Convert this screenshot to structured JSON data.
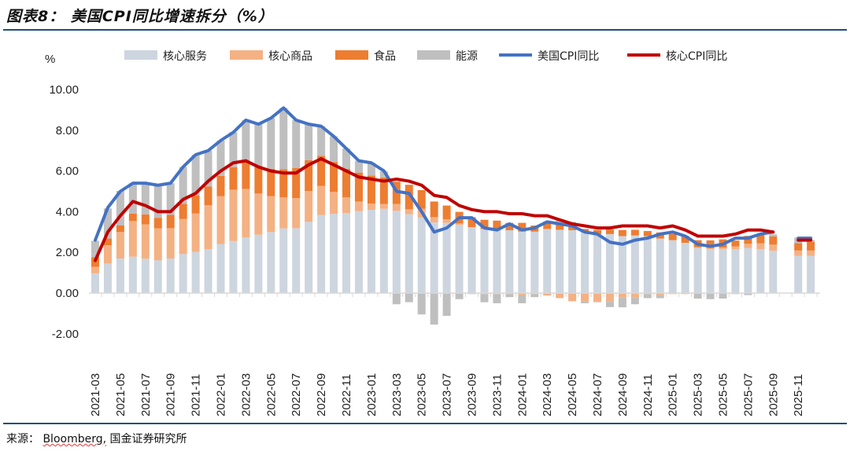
{
  "title": "图表8：  美国CPI同比增速拆分（%）",
  "source": {
    "prefix": "来源：",
    "brand": "Bloomberg,",
    "suffix": "国金证券研究所"
  },
  "chart_data": {
    "type": "bar",
    "stacked": true,
    "title": "",
    "ylabel": "%",
    "ylim": [
      -2,
      10
    ],
    "yticks": [
      "-2.00",
      "0.00",
      "2.00",
      "4.00",
      "6.00",
      "8.00",
      "10.00"
    ],
    "ytick_values": [
      -2,
      0,
      2,
      4,
      6,
      8,
      10
    ],
    "grid": false,
    "legend_position": "top",
    "categories": [
      "2021-03",
      "2021-04",
      "2021-05",
      "2021-06",
      "2021-07",
      "2021-08",
      "2021-09",
      "2021-10",
      "2021-11",
      "2021-12",
      "2022-01",
      "2022-02",
      "2022-03",
      "2022-04",
      "2022-05",
      "2022-06",
      "2022-07",
      "2022-08",
      "2022-09",
      "2022-10",
      "2022-11",
      "2022-12",
      "2023-01",
      "2023-02",
      "2023-03",
      "2023-04",
      "2023-05",
      "2023-06",
      "2023-07",
      "2023-08",
      "2023-09",
      "2023-10",
      "2023-11",
      "2023-12",
      "2024-01",
      "2024-02",
      "2024-03",
      "2024-04",
      "2024-05",
      "2024-06",
      "2024-07",
      "2024-08",
      "2024-09",
      "2024-10",
      "2024-11",
      "2024-12",
      "2025-01",
      "2025-02",
      "2025-03",
      "2025-04",
      "2025-05",
      "2025-06",
      "2025-07",
      "2025-08",
      "2025-09",
      "2025-10",
      "2025-11",
      "2025-12"
    ],
    "xtick_labels": [
      "2021-03",
      "2021-05",
      "2021-07",
      "2021-09",
      "2021-11",
      "2022-01",
      "2022-03",
      "2022-05",
      "2022-07",
      "2022-09",
      "2022-11",
      "2023-01",
      "2023-03",
      "2023-05",
      "2023-07",
      "2023-09",
      "2023-11",
      "2024-01",
      "2024-03",
      "2024-05",
      "2024-07",
      "2024-09",
      "2024-11",
      "2025-01",
      "2025-03",
      "2025-05",
      "2025-07",
      "2025-09",
      "2025-11"
    ],
    "bar_series": [
      {
        "name": "核心服务",
        "color": "#CDD5DF",
        "values": [
          0.97,
          1.45,
          1.7,
          1.79,
          1.69,
          1.61,
          1.7,
          1.92,
          2.02,
          2.16,
          2.41,
          2.56,
          2.74,
          2.87,
          3.0,
          3.18,
          3.19,
          3.5,
          3.84,
          3.89,
          3.93,
          4.03,
          4.09,
          4.14,
          4.04,
          3.87,
          3.71,
          3.47,
          3.45,
          3.35,
          3.24,
          3.15,
          3.09,
          3.09,
          3.02,
          3.02,
          3.15,
          3.11,
          3.09,
          3.02,
          2.9,
          2.9,
          2.8,
          2.83,
          2.8,
          2.68,
          2.6,
          2.47,
          2.21,
          2.16,
          2.16,
          2.16,
          2.21,
          2.16,
          2.08,
          null,
          1.83,
          1.83
        ]
      },
      {
        "name": "核心商品",
        "color": "#F4B183",
        "values": [
          0.32,
          0.9,
          1.3,
          1.75,
          1.69,
          1.57,
          1.49,
          1.72,
          1.89,
          2.16,
          2.35,
          2.52,
          2.38,
          2.02,
          1.76,
          1.52,
          1.48,
          1.51,
          1.43,
          1.08,
          0.77,
          0.47,
          0.31,
          0.24,
          0.34,
          0.25,
          0.43,
          0.26,
          0.18,
          0.07,
          0.0,
          -0.05,
          -0.05,
          -0.05,
          -0.1,
          -0.05,
          -0.12,
          -0.25,
          -0.4,
          -0.4,
          -0.4,
          -0.39,
          -0.2,
          -0.2,
          -0.05,
          -0.1,
          -0.05,
          -0.05,
          0.05,
          0.05,
          0.08,
          0.13,
          0.21,
          0.28,
          0.3,
          null,
          0.26,
          0.26
        ]
      },
      {
        "name": "食品",
        "color": "#ED7D31",
        "values": [
          0.47,
          0.33,
          0.32,
          0.36,
          0.49,
          0.52,
          0.65,
          0.74,
          0.89,
          0.92,
          1.0,
          1.11,
          1.29,
          1.29,
          1.35,
          1.39,
          1.48,
          1.52,
          1.47,
          1.47,
          1.41,
          1.42,
          1.37,
          1.3,
          1.09,
          1.2,
          0.92,
          0.77,
          0.67,
          0.57,
          0.49,
          0.45,
          0.47,
          0.36,
          0.43,
          0.3,
          0.32,
          0.26,
          0.2,
          0.13,
          0.2,
          0.22,
          0.3,
          0.28,
          0.25,
          0.3,
          0.3,
          0.3,
          0.34,
          0.38,
          0.4,
          0.29,
          0.39,
          0.41,
          0.41,
          null,
          0.36,
          0.42
        ]
      },
      {
        "name": "能源",
        "color": "#BFBFBF",
        "values": [
          0.81,
          1.48,
          1.7,
          1.5,
          1.53,
          1.6,
          1.56,
          1.82,
          2.0,
          1.76,
          1.73,
          1.71,
          2.09,
          2.12,
          2.49,
          3.01,
          2.35,
          1.77,
          1.46,
          1.26,
          0.99,
          0.58,
          0.63,
          0.3,
          -0.55,
          -0.45,
          -1.05,
          -1.55,
          -1.12,
          -0.3,
          -0.05,
          -0.4,
          -0.45,
          -0.15,
          -0.4,
          -0.15,
          0.05,
          0.26,
          0.2,
          -0.1,
          -0.05,
          -0.3,
          -0.5,
          -0.35,
          -0.2,
          -0.15,
          0.1,
          0.05,
          -0.27,
          -0.3,
          -0.27,
          -0.05,
          -0.1,
          0.05,
          0.1,
          null,
          0.28,
          0.1
        ]
      }
    ],
    "line_series": [
      {
        "name": "美国CPI同比",
        "color": "#4472C4",
        "values": [
          2.6,
          4.2,
          5.0,
          5.4,
          5.4,
          5.3,
          5.4,
          6.2,
          6.8,
          7.0,
          7.5,
          7.9,
          8.5,
          8.3,
          8.6,
          9.1,
          8.5,
          8.3,
          8.2,
          7.7,
          7.1,
          6.5,
          6.4,
          6.0,
          5.0,
          4.9,
          4.0,
          3.0,
          3.2,
          3.7,
          3.7,
          3.2,
          3.1,
          3.4,
          3.1,
          3.2,
          3.5,
          3.4,
          3.3,
          3.0,
          2.9,
          2.5,
          2.4,
          2.6,
          2.7,
          2.9,
          3.0,
          2.8,
          2.4,
          2.3,
          2.4,
          2.7,
          2.7,
          2.9,
          3.0,
          null,
          2.7,
          2.7
        ]
      },
      {
        "name": "核心CPI同比",
        "color": "#C00000",
        "values": [
          1.6,
          3.0,
          3.8,
          4.5,
          4.3,
          4.0,
          4.0,
          4.6,
          4.9,
          5.5,
          6.0,
          6.4,
          6.5,
          6.2,
          6.0,
          5.9,
          5.9,
          6.3,
          6.6,
          6.3,
          6.0,
          5.7,
          5.6,
          5.5,
          5.6,
          5.5,
          5.3,
          4.8,
          4.7,
          4.3,
          4.1,
          4.0,
          4.0,
          3.9,
          3.9,
          3.8,
          3.8,
          3.6,
          3.4,
          3.3,
          3.2,
          3.2,
          3.3,
          3.3,
          3.3,
          3.2,
          3.3,
          3.1,
          2.8,
          2.8,
          2.8,
          2.9,
          3.1,
          3.1,
          3.0,
          null,
          2.6,
          2.6
        ]
      }
    ]
  }
}
